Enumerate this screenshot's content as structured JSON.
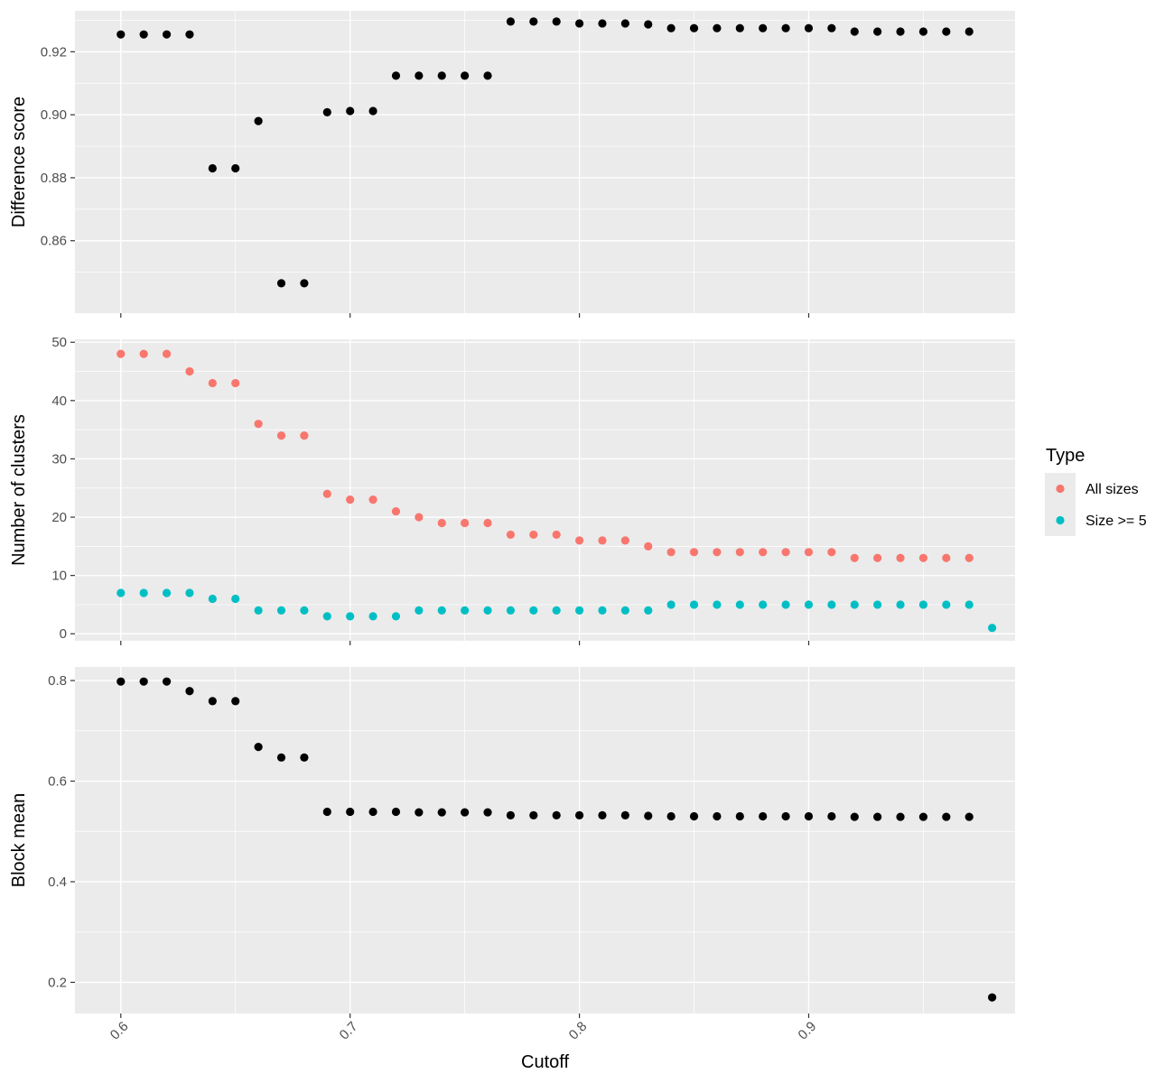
{
  "chart_data": {
    "type": "scatter",
    "xlabel": "Cutoff",
    "xlim": [
      0.58,
      0.99
    ],
    "x_ticks": [
      0.6,
      0.7,
      0.8,
      0.9
    ],
    "x_tick_labels": [
      "0.6",
      "0.7",
      "0.8",
      "0.9"
    ],
    "x_tick_rotation": "45 degrees",
    "x": [
      0.6,
      0.61,
      0.62,
      0.63,
      0.64,
      0.65,
      0.66,
      0.67,
      0.68,
      0.69,
      0.7,
      0.71,
      0.72,
      0.73,
      0.74,
      0.75,
      0.76,
      0.77,
      0.78,
      0.79,
      0.8,
      0.81,
      0.82,
      0.83,
      0.84,
      0.85,
      0.86,
      0.87,
      0.88,
      0.89,
      0.9,
      0.91,
      0.92,
      0.93,
      0.94,
      0.95,
      0.96,
      0.97,
      0.98
    ],
    "grid": true,
    "panels": [
      {
        "ylabel": "Difference score",
        "ylim": [
          0.837,
          0.933
        ],
        "y_ticks": [
          0.86,
          0.88,
          0.9,
          0.92
        ],
        "y_tick_labels": [
          "0.86",
          "0.88",
          "0.90",
          "0.92"
        ],
        "series": [
          {
            "color": "#000000",
            "values": [
              0.9255,
              0.9255,
              0.9255,
              0.9255,
              0.883,
              0.883,
              0.898,
              0.8465,
              0.8465,
              0.9008,
              0.9012,
              0.9012,
              0.9124,
              0.9124,
              0.9124,
              0.9124,
              0.9124,
              0.9296,
              0.9296,
              0.9296,
              0.929,
              0.929,
              0.929,
              0.9287,
              0.9275,
              0.9275,
              0.9275,
              0.9275,
              0.9275,
              0.9275,
              0.9275,
              0.9275,
              0.9264,
              0.9264,
              0.9264,
              0.9264,
              0.9264,
              0.9264,
              null
            ]
          }
        ]
      },
      {
        "ylabel": "Number of clusters",
        "ylim": [
          -1.2,
          50.5
        ],
        "y_ticks": [
          0,
          10,
          20,
          30,
          40,
          50
        ],
        "y_tick_labels": [
          "0",
          "10",
          "20",
          "30",
          "40",
          "50"
        ],
        "series": [
          {
            "name": "All sizes",
            "color": "#F8766D",
            "values": [
              48,
              48,
              48,
              45,
              43,
              43,
              36,
              34,
              34,
              24,
              23,
              23,
              21,
              20,
              19,
              19,
              19,
              17,
              17,
              17,
              16,
              16,
              16,
              15,
              14,
              14,
              14,
              14,
              14,
              14,
              14,
              14,
              13,
              13,
              13,
              13,
              13,
              13,
              null
            ]
          },
          {
            "name": "Size >= 5",
            "color": "#00BFC4",
            "values": [
              7,
              7,
              7,
              7,
              6,
              6,
              4,
              4,
              4,
              3,
              3,
              3,
              3,
              4,
              4,
              4,
              4,
              4,
              4,
              4,
              4,
              4,
              4,
              4,
              5,
              5,
              5,
              5,
              5,
              5,
              5,
              5,
              5,
              5,
              5,
              5,
              5,
              5,
              1
            ]
          }
        ]
      },
      {
        "ylabel": "Block mean",
        "ylim": [
          0.138,
          0.827
        ],
        "y_ticks": [
          0.2,
          0.4,
          0.6,
          0.8
        ],
        "y_tick_labels": [
          "0.2",
          "0.4",
          "0.6",
          "0.8"
        ],
        "series": [
          {
            "color": "#000000",
            "values": [
              0.798,
              0.798,
              0.798,
              0.779,
              0.759,
              0.759,
              0.668,
              0.647,
              0.647,
              0.539,
              0.539,
              0.539,
              0.539,
              0.538,
              0.538,
              0.538,
              0.538,
              0.532,
              0.532,
              0.532,
              0.532,
              0.532,
              0.532,
              0.531,
              0.53,
              0.53,
              0.53,
              0.53,
              0.53,
              0.53,
              0.53,
              0.53,
              0.529,
              0.529,
              0.529,
              0.529,
              0.529,
              0.529,
              0.17
            ]
          }
        ]
      }
    ],
    "legend": {
      "title": "Type",
      "position": "right",
      "entries": [
        {
          "label": "All sizes",
          "color": "#F8766D"
        },
        {
          "label": "Size >= 5",
          "color": "#00BFC4"
        }
      ]
    }
  }
}
